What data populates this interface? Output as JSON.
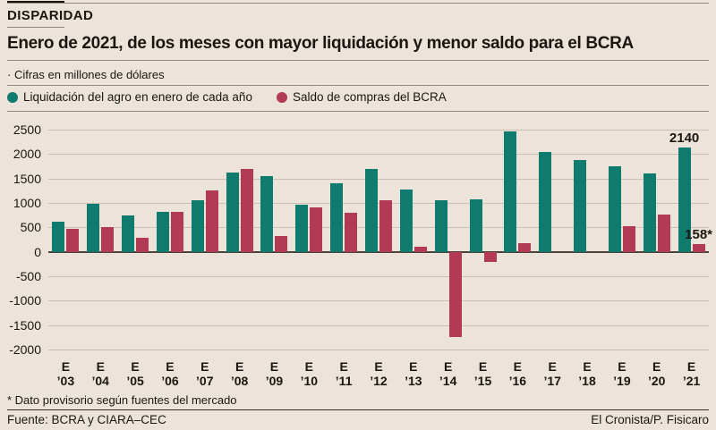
{
  "header": {
    "kicker": "DISPARIDAD",
    "title": "Enero de 2021, de los meses con mayor liquidación y menor saldo para el BCRA",
    "note": "· Cifras en millones de dólares"
  },
  "colors": {
    "background": "#ece4da",
    "liquidacion": "#0f7b6f",
    "saldo": "#b23a52",
    "gridline": "#c9bfb3",
    "zero_line": "#4a443c",
    "text": "#1a1612"
  },
  "legend": [
    {
      "label": "Liquidación del agro en enero de cada año",
      "color": "#0f7b6f"
    },
    {
      "label": "Saldo de compras del BCRA",
      "color": "#b23a52"
    }
  ],
  "chart_data": {
    "type": "bar",
    "title": "Enero de 2021, de los meses con mayor liquidación y menor saldo para el BCRA",
    "subtitle": "Cifras en millones de dólares",
    "xlabel": "",
    "ylabel": "millones de dólares",
    "categories": [
      "’03",
      "’04",
      "’05",
      "’06",
      "’07",
      "’08",
      "’09",
      "’10",
      "’11",
      "’12",
      "’13",
      "’14",
      "’15",
      "’16",
      "’17",
      "’18",
      "’19",
      "’20",
      "’21"
    ],
    "category_prefix": "E",
    "series": [
      {
        "name": "Liquidación del agro en enero de cada año",
        "color": "#0f7b6f",
        "values": [
          620,
          980,
          750,
          820,
          1060,
          1630,
          1550,
          960,
          1400,
          1690,
          1270,
          1060,
          1080,
          2460,
          2040,
          1870,
          1750,
          1600,
          2140
        ]
      },
      {
        "name": "Saldo de compras del BCRA",
        "color": "#b23a52",
        "values": [
          470,
          510,
          280,
          825,
          1250,
          1700,
          320,
          900,
          790,
          1060,
          100,
          -1750,
          -200,
          170,
          0,
          0,
          530,
          760,
          158
        ]
      }
    ],
    "ylim": [
      -2000,
      2500
    ],
    "ytick_step": 500,
    "grid": true,
    "legend_position": "top",
    "annotations": [
      {
        "text": "2140",
        "category_index": 18,
        "series_index": 0
      },
      {
        "text": "158*",
        "category_index": 18,
        "series_index": 1
      }
    ]
  },
  "footer": {
    "footnote": "* Dato provisorio según fuentes del mercado",
    "source": "Fuente: BCRA y CIARA–CEC",
    "credit": "El Cronista/P. Fisicaro"
  }
}
